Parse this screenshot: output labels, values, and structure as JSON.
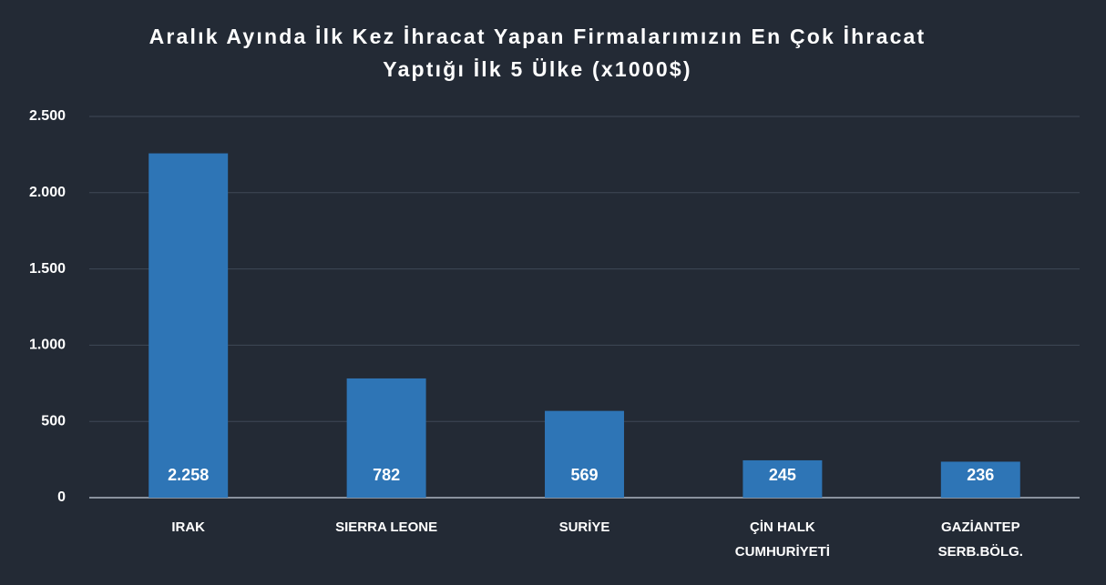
{
  "chart_data": {
    "type": "bar",
    "title": "Aralık Ayında İlk Kez İhracat Yapan Firmalarımızın En Çok İhracat Yaptığı İlk 5 Ülke (x1000$)",
    "categories": [
      "IRAK",
      "SIERRA LEONE",
      "SURİYE",
      "ÇİN HALK CUMHURİYETİ",
      "GAZİANTEP SERB.BÖLG."
    ],
    "values": [
      2258,
      782,
      569,
      245,
      236
    ],
    "value_labels": [
      "2.258",
      "782",
      "569",
      "245",
      "236"
    ],
    "color": "#2e75b6",
    "ylim": [
      0,
      2500
    ],
    "yticks": [
      0,
      500,
      {
        "value": 1000,
        "label": "1.000"
      },
      {
        "value": 1500,
        "label": "1.500"
      },
      {
        "value": 2000,
        "label": "2.000"
      },
      {
        "value": 2500,
        "label": "2.500"
      }
    ],
    "grid": true
  }
}
